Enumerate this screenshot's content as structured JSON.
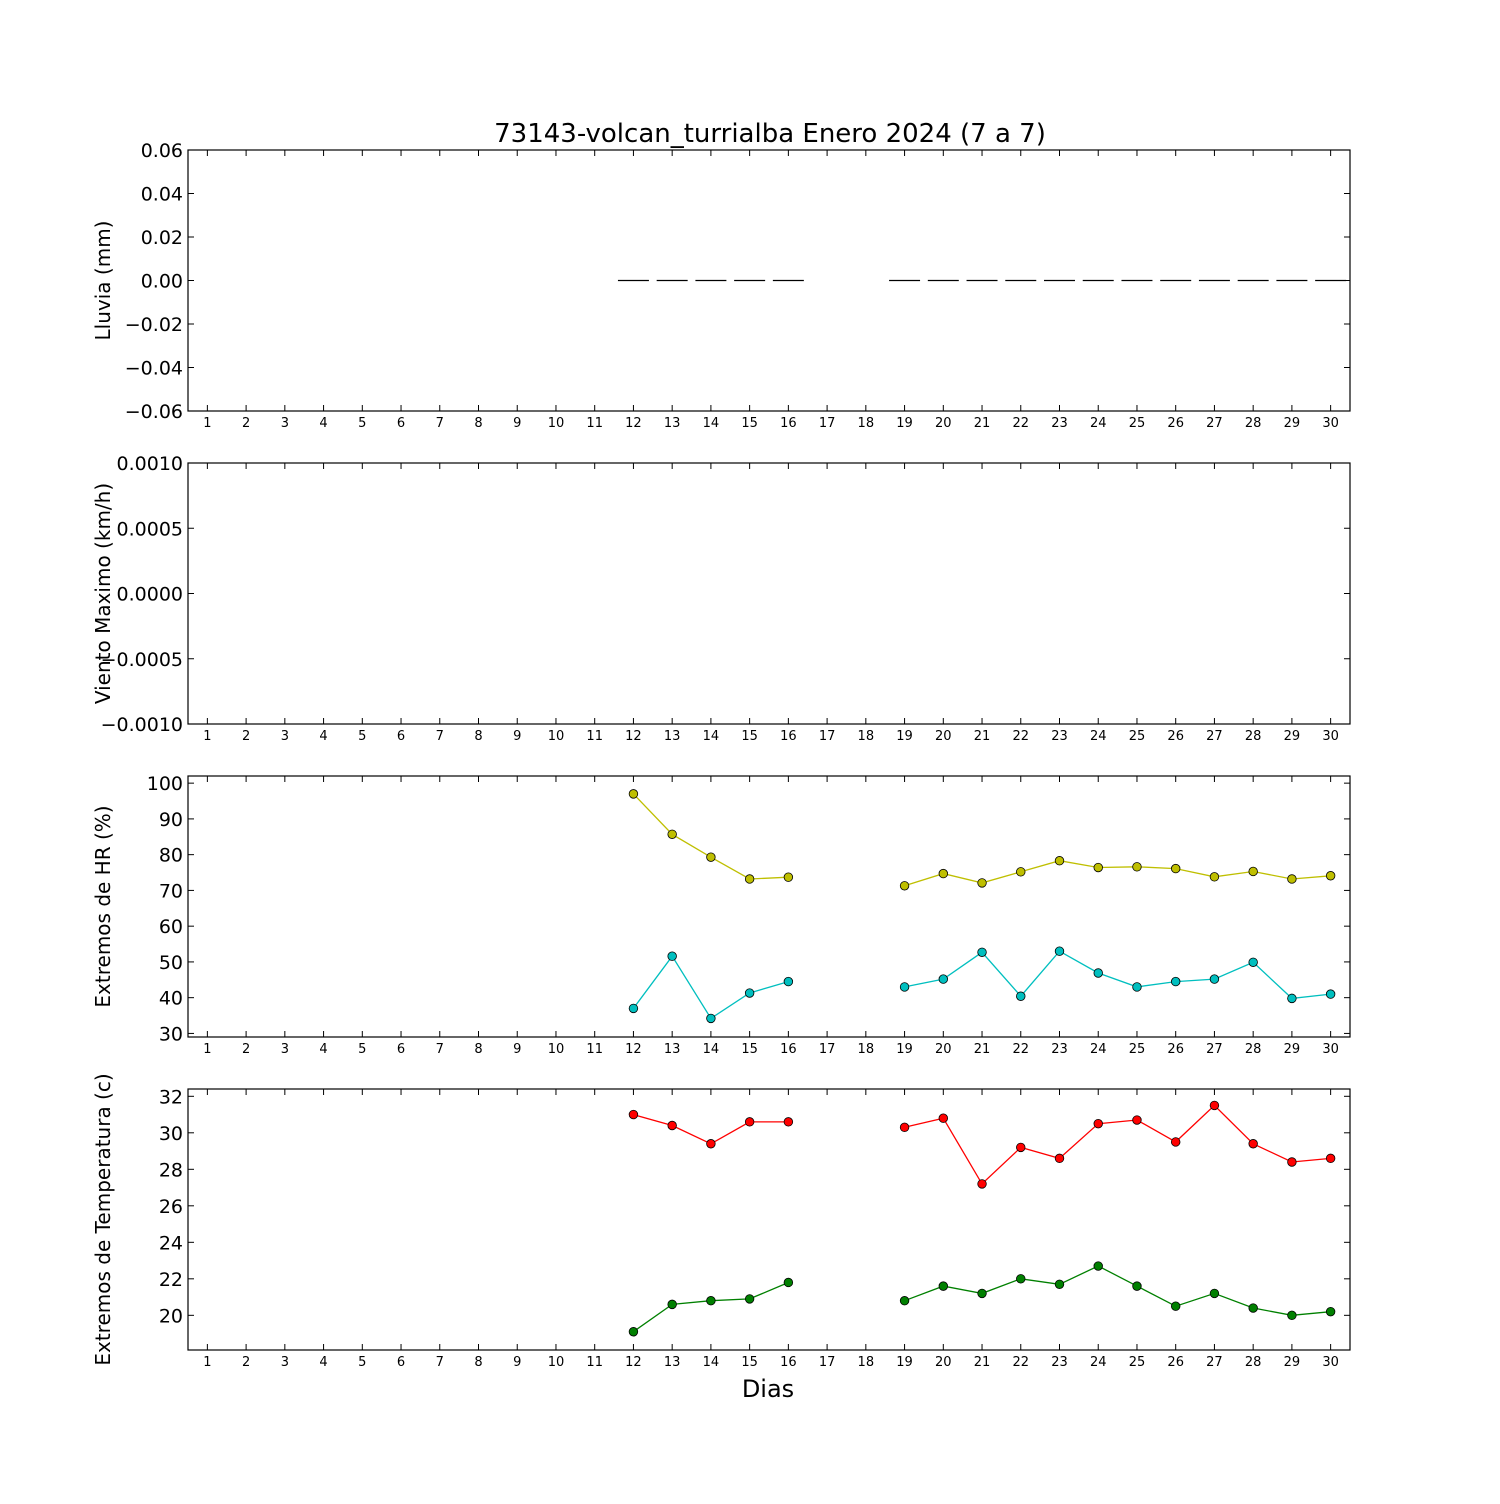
{
  "title": "73143-volcan_turrialba Enero 2024  (7 a 7)",
  "xlabel": "Dias",
  "colors": {
    "hr_max": "#bfbf00",
    "hr_min": "#00bfbf",
    "temp_max": "#ff0000",
    "temp_min": "#008000",
    "rain": "#000000"
  },
  "chart_data": [
    {
      "type": "bar",
      "id": "lluvia",
      "ylabel": "Lluvia (mm)",
      "ylim": [
        -0.06,
        0.06
      ],
      "yticks": [
        0.06,
        0.04,
        0.02,
        0.0,
        -0.02,
        -0.04,
        -0.06
      ],
      "ytick_labels": [
        "0.06",
        "0.04",
        "0.02",
        "0.00",
        "−0.02",
        "−0.04",
        "−0.06"
      ],
      "categories": [
        "1",
        "2",
        "3",
        "4",
        "5",
        "6",
        "7",
        "8",
        "9",
        "10",
        "11",
        "12",
        "13",
        "14",
        "15",
        "16",
        "17",
        "18",
        "19",
        "20",
        "21",
        "22",
        "23",
        "24",
        "25",
        "26",
        "27",
        "28",
        "29",
        "30"
      ],
      "series": [
        {
          "values": [
            null,
            null,
            null,
            null,
            null,
            null,
            null,
            null,
            null,
            null,
            null,
            0,
            0,
            0,
            0,
            0,
            null,
            null,
            0,
            0,
            0,
            0,
            0,
            0,
            0,
            0,
            0,
            0,
            0,
            0
          ]
        }
      ]
    },
    {
      "type": "line",
      "id": "viento",
      "ylabel": "Viento Maximo (km/h)",
      "ylim": [
        -0.001,
        0.001
      ],
      "yticks": [
        0.001,
        0.0005,
        0.0,
        -0.0005,
        -0.001
      ],
      "ytick_labels": [
        "0.0010",
        "0.0005",
        "0.0000",
        "−0.0005",
        "−0.0010"
      ],
      "categories": [
        "1",
        "2",
        "3",
        "4",
        "5",
        "6",
        "7",
        "8",
        "9",
        "10",
        "11",
        "12",
        "13",
        "14",
        "15",
        "16",
        "17",
        "18",
        "19",
        "20",
        "21",
        "22",
        "23",
        "24",
        "25",
        "26",
        "27",
        "28",
        "29",
        "30"
      ],
      "series": []
    },
    {
      "type": "line",
      "id": "hr",
      "ylabel": "Extremos de HR (%)",
      "ylim": [
        29,
        102
      ],
      "yticks": [
        100,
        90,
        80,
        70,
        60,
        50,
        40,
        30
      ],
      "ytick_labels": [
        "100",
        "90",
        "80",
        "70",
        "60",
        "50",
        "40",
        "30"
      ],
      "categories": [
        "1",
        "2",
        "3",
        "4",
        "5",
        "6",
        "7",
        "8",
        "9",
        "10",
        "11",
        "12",
        "13",
        "14",
        "15",
        "16",
        "17",
        "18",
        "19",
        "20",
        "21",
        "22",
        "23",
        "24",
        "25",
        "26",
        "27",
        "28",
        "29",
        "30"
      ],
      "series": [
        {
          "color_key": "hr_max",
          "values": [
            null,
            null,
            null,
            null,
            null,
            null,
            null,
            null,
            null,
            null,
            null,
            97,
            85.7,
            79.3,
            73.2,
            73.7,
            null,
            null,
            71.3,
            74.7,
            72.1,
            75.2,
            78.3,
            76.4,
            76.6,
            76.1,
            73.8,
            75.3,
            73.2,
            74.1
          ]
        },
        {
          "color_key": "hr_min",
          "values": [
            null,
            null,
            null,
            null,
            null,
            null,
            null,
            null,
            null,
            null,
            null,
            37,
            51.6,
            34.2,
            41.3,
            44.5,
            null,
            null,
            43,
            45.2,
            52.7,
            40.4,
            53,
            46.9,
            43,
            44.5,
            45.2,
            49.9,
            39.8,
            41
          ]
        }
      ]
    },
    {
      "type": "line",
      "id": "temp",
      "ylabel": "Extremos de Temperatura (c)",
      "ylim": [
        18.1,
        32.4
      ],
      "yticks": [
        32,
        30,
        28,
        26,
        24,
        22,
        20
      ],
      "ytick_labels": [
        "32",
        "30",
        "28",
        "26",
        "24",
        "22",
        "20"
      ],
      "categories": [
        "1",
        "2",
        "3",
        "4",
        "5",
        "6",
        "7",
        "8",
        "9",
        "10",
        "11",
        "12",
        "13",
        "14",
        "15",
        "16",
        "17",
        "18",
        "19",
        "20",
        "21",
        "22",
        "23",
        "24",
        "25",
        "26",
        "27",
        "28",
        "29",
        "30"
      ],
      "series": [
        {
          "color_key": "temp_max",
          "values": [
            null,
            null,
            null,
            null,
            null,
            null,
            null,
            null,
            null,
            null,
            null,
            31,
            30.4,
            29.4,
            30.6,
            30.6,
            null,
            null,
            30.3,
            30.8,
            27.2,
            29.2,
            28.6,
            30.5,
            30.7,
            29.5,
            31.5,
            29.4,
            28.4,
            28.6
          ]
        },
        {
          "color_key": "temp_min",
          "values": [
            null,
            null,
            null,
            null,
            null,
            null,
            null,
            null,
            null,
            null,
            null,
            19.1,
            20.6,
            20.8,
            20.9,
            21.8,
            null,
            null,
            20.8,
            21.6,
            21.2,
            22,
            21.7,
            22.7,
            21.6,
            20.5,
            21.2,
            20.4,
            20,
            20.2
          ]
        }
      ]
    }
  ]
}
